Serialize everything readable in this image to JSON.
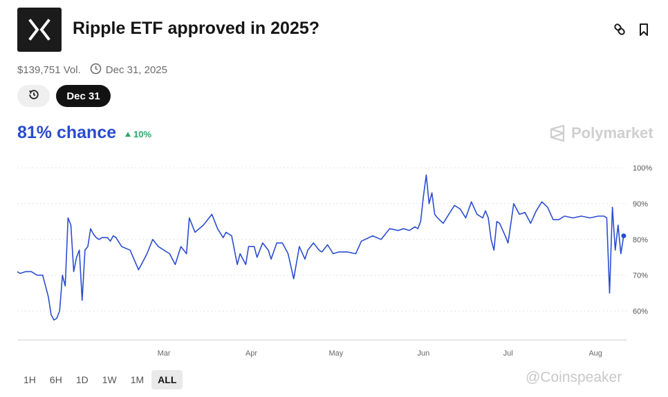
{
  "market": {
    "logo_icon": "x-logo-icon",
    "title": "Ripple ETF approved in 2025?",
    "volume": "$139,751 Vol.",
    "end_date": "Dec 31, 2025",
    "date_pill": "Dec 31",
    "chance": "81% chance",
    "change": "10%",
    "brand": "Polymarket"
  },
  "timeframes": [
    {
      "label": "1H",
      "active": false
    },
    {
      "label": "6H",
      "active": false
    },
    {
      "label": "1D",
      "active": false
    },
    {
      "label": "1W",
      "active": false
    },
    {
      "label": "1M",
      "active": false
    },
    {
      "label": "ALL",
      "active": true
    }
  ],
  "watermark": "@Coinspeaker",
  "colors": {
    "line": "#2a4cd0",
    "chance": "#2a4cd0",
    "up": "#2ea56a",
    "grid": "#d9d9d9"
  },
  "chart_data": {
    "type": "line",
    "title": "",
    "xlabel": "",
    "ylabel": "",
    "y_tick_labels": [
      "100%",
      "90%",
      "80%",
      "70%",
      "60%"
    ],
    "y_ticks": [
      100,
      90,
      80,
      70,
      60
    ],
    "ylim": [
      52,
      100
    ],
    "x_tick_labels": [
      "Mar",
      "Apr",
      "May",
      "Jun",
      "Jul",
      "Aug"
    ],
    "x_ticks": [
      "2025-03-01",
      "2025-04-01",
      "2025-05-01",
      "2025-06-01",
      "2025-07-01",
      "2025-08-01"
    ],
    "xlim": [
      "2025-01-08",
      "2025-08-12"
    ],
    "grid": "horizontal dotted",
    "series": [
      {
        "x": [
          "2025-01-08",
          "2025-01-09",
          "2025-01-11",
          "2025-01-13",
          "2025-01-15",
          "2025-01-17",
          "2025-01-19",
          "2025-01-20",
          "2025-01-21",
          "2025-01-22",
          "2025-01-23",
          "2025-01-24",
          "2025-01-25",
          "2025-01-26",
          "2025-01-27",
          "2025-01-28",
          "2025-01-29",
          "2025-01-30",
          "2025-01-31",
          "2025-02-01",
          "2025-02-02",
          "2025-02-03",
          "2025-02-04",
          "2025-02-05",
          "2025-02-06",
          "2025-02-07",
          "2025-02-08",
          "2025-02-09",
          "2025-02-10",
          "2025-02-11",
          "2025-02-12",
          "2025-02-14",
          "2025-02-17",
          "2025-02-20",
          "2025-02-23",
          "2025-02-25",
          "2025-02-27",
          "2025-03-01",
          "2025-03-03",
          "2025-03-05",
          "2025-03-07",
          "2025-03-09",
          "2025-03-10",
          "2025-03-12",
          "2025-03-15",
          "2025-03-18",
          "2025-03-20",
          "2025-03-22",
          "2025-03-23",
          "2025-03-25",
          "2025-03-27",
          "2025-03-28",
          "2025-03-30",
          "2025-03-31",
          "2025-04-02",
          "2025-04-03",
          "2025-04-05",
          "2025-04-07",
          "2025-04-08",
          "2025-04-10",
          "2025-04-12",
          "2025-04-14",
          "2025-04-16",
          "2025-04-18",
          "2025-04-20",
          "2025-04-21",
          "2025-04-23",
          "2025-04-25",
          "2025-04-26",
          "2025-04-28",
          "2025-04-30",
          "2025-05-02",
          "2025-05-05",
          "2025-05-08",
          "2025-05-10",
          "2025-05-14",
          "2025-05-17",
          "2025-05-20",
          "2025-05-23",
          "2025-05-25",
          "2025-05-27",
          "2025-05-29",
          "2025-05-30",
          "2025-05-31",
          "2025-06-01",
          "2025-06-02",
          "2025-06-03",
          "2025-06-04",
          "2025-06-05",
          "2025-06-06",
          "2025-06-08",
          "2025-06-10",
          "2025-06-12",
          "2025-06-14",
          "2025-06-16",
          "2025-06-18",
          "2025-06-20",
          "2025-06-22",
          "2025-06-23",
          "2025-06-24",
          "2025-06-25",
          "2025-06-26",
          "2025-06-27",
          "2025-06-28",
          "2025-06-30",
          "2025-07-01",
          "2025-07-03",
          "2025-07-05",
          "2025-07-07",
          "2025-07-09",
          "2025-07-11",
          "2025-07-13",
          "2025-07-15",
          "2025-07-17",
          "2025-07-19",
          "2025-07-21",
          "2025-07-24",
          "2025-07-27",
          "2025-07-30",
          "2025-08-02",
          "2025-08-04",
          "2025-08-05",
          "2025-08-06",
          "2025-08-07",
          "2025-08-08",
          "2025-08-09",
          "2025-08-10",
          "2025-08-11"
        ],
        "y": [
          71,
          70.5,
          71,
          71,
          70,
          70,
          64,
          59,
          57.5,
          58,
          60,
          70,
          67,
          86,
          84,
          71,
          75,
          77,
          63,
          77,
          78,
          83,
          81.5,
          80.5,
          80,
          80.5,
          80.5,
          80.5,
          79.5,
          81,
          80.5,
          78,
          77,
          71.5,
          76,
          80,
          78,
          77,
          76,
          73,
          78,
          76,
          86,
          82,
          84,
          87,
          83,
          80.5,
          82,
          81,
          73,
          76,
          73,
          78,
          78,
          75,
          79,
          77,
          74.5,
          79,
          79,
          76,
          69,
          78,
          74.5,
          77,
          79,
          77,
          76.5,
          78.5,
          76,
          76.5,
          76.5,
          76,
          79.5,
          81,
          80,
          83,
          82.5,
          83,
          82.5,
          83.5,
          83,
          85,
          92,
          98,
          90,
          93,
          87,
          86,
          84.5,
          87,
          89.5,
          88.5,
          86,
          90.5,
          87,
          86,
          88,
          86,
          80,
          77,
          85,
          84.5,
          81,
          79,
          90,
          87,
          87.5,
          84.5,
          88,
          90.5,
          89,
          85.5,
          85.5,
          86.5,
          86,
          86.5,
          86,
          86.5,
          86.5,
          86,
          65,
          89,
          77,
          84,
          76,
          81
        ]
      }
    ]
  }
}
